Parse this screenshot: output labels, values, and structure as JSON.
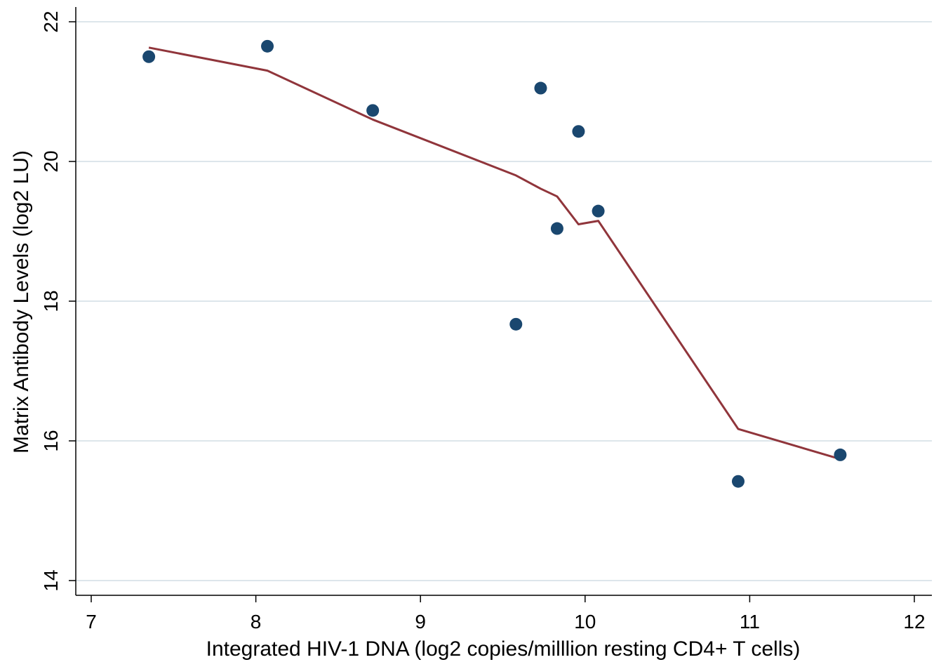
{
  "chart_data": {
    "type": "scatter",
    "title": "",
    "xlabel": "Integrated HIV-1 DNA (log2 copies/milllion resting CD4+ T cells)",
    "ylabel": "Matrix Antibody Levels (log2 LU)",
    "xlim": [
      6.9,
      12.1
    ],
    "ylim": [
      13.9,
      22.2
    ],
    "xticks": [
      7,
      8,
      9,
      10,
      11,
      12
    ],
    "yticks": [
      14,
      16,
      18,
      20,
      22
    ],
    "grid": "horizontal",
    "colors": {
      "points": "#1a476f",
      "fit_line": "#90353b",
      "grid": "#dde6eb",
      "axis": "#000000"
    },
    "series": [
      {
        "type": "scatter",
        "points": [
          {
            "x": 7.35,
            "y": 21.5
          },
          {
            "x": 8.07,
            "y": 21.65
          },
          {
            "x": 8.71,
            "y": 20.73
          },
          {
            "x": 9.58,
            "y": 17.67
          },
          {
            "x": 9.73,
            "y": 21.05
          },
          {
            "x": 9.83,
            "y": 19.04
          },
          {
            "x": 9.96,
            "y": 20.43
          },
          {
            "x": 10.08,
            "y": 19.29
          },
          {
            "x": 10.93,
            "y": 15.42
          },
          {
            "x": 11.55,
            "y": 15.8
          }
        ]
      },
      {
        "type": "line",
        "points": [
          {
            "x": 7.35,
            "y": 21.63
          },
          {
            "x": 8.07,
            "y": 21.3
          },
          {
            "x": 8.71,
            "y": 20.6
          },
          {
            "x": 9.58,
            "y": 19.8
          },
          {
            "x": 9.73,
            "y": 19.61
          },
          {
            "x": 9.83,
            "y": 19.5
          },
          {
            "x": 9.96,
            "y": 19.1
          },
          {
            "x": 10.08,
            "y": 19.15
          },
          {
            "x": 10.93,
            "y": 16.17
          },
          {
            "x": 11.55,
            "y": 15.74
          }
        ]
      }
    ]
  }
}
